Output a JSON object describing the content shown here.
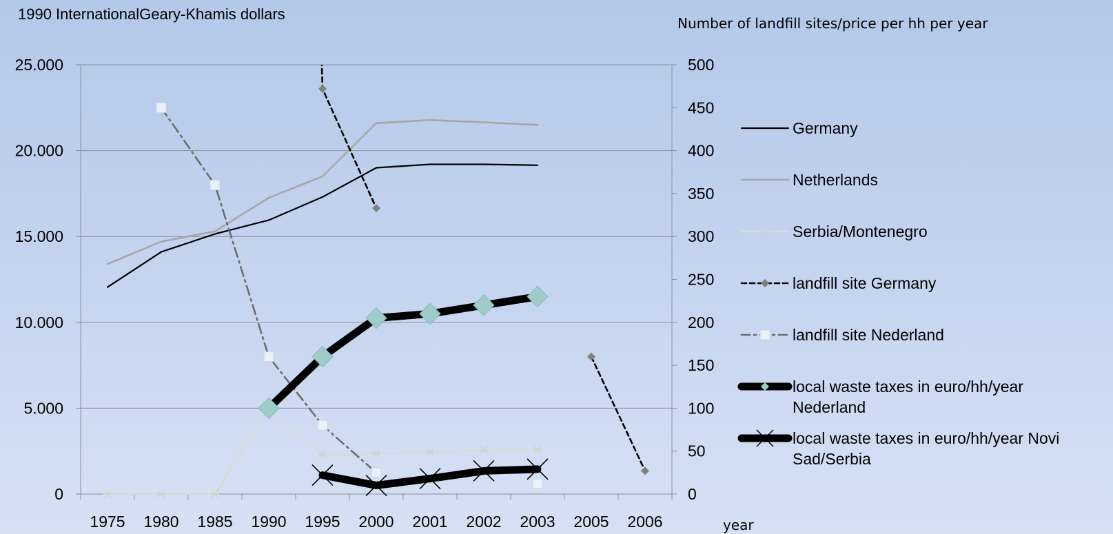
{
  "chart_data": {
    "type": "line",
    "title": "",
    "left_axis_title": "1990 InternationalGeary-Khamis dollars",
    "right_axis_title": "Number of landfill sites/price per hh per year",
    "xlabel": "year",
    "categories": [
      "1975",
      "1980",
      "1985",
      "1990",
      "1995",
      "2000",
      "2001",
      "2002",
      "2003",
      "2005",
      "2006"
    ],
    "left_ylim": [
      0,
      25000
    ],
    "left_ticks": [
      "0",
      "5.000",
      "10.000",
      "15.000",
      "20.000",
      "25.000"
    ],
    "right_ylim": [
      0,
      500
    ],
    "right_ticks": [
      "0",
      "50",
      "100",
      "150",
      "200",
      "250",
      "300",
      "350",
      "400",
      "450",
      "500"
    ],
    "grid": true,
    "legend_position": "right",
    "series": [
      {
        "name": "Germany",
        "axis": "left",
        "color": "#000000",
        "values": [
          12050,
          14100,
          15150,
          15950,
          17300,
          19000,
          19200,
          19200,
          19150,
          null,
          null
        ]
      },
      {
        "name": "Netherlands",
        "axis": "left",
        "color": "#a6a6a6",
        "values": [
          13400,
          14700,
          15300,
          17250,
          18500,
          21600,
          21780,
          21650,
          21500,
          null,
          null
        ]
      },
      {
        "name": "Serbia/Montenegro",
        "axis": "left",
        "color": "#d0dcd8",
        "values": [
          0,
          0,
          0,
          5000,
          2300,
          2350,
          2450,
          2550,
          2600,
          null,
          null
        ]
      },
      {
        "name": "landfill site Germany",
        "axis": "right",
        "color": "#000000",
        "values": [
          null,
          null,
          null,
          null,
          472,
          333,
          null,
          null,
          null,
          160,
          27
        ]
      },
      {
        "name": "landfill site Nederland",
        "axis": "right",
        "color": "#6d6d6d",
        "values": [
          null,
          450,
          360,
          160,
          80,
          25,
          null,
          null,
          12,
          null,
          null
        ]
      },
      {
        "name": "local waste taxes in euro/hh/year Nederland",
        "axis": "right",
        "color": "#000000",
        "values": [
          null,
          null,
          null,
          100,
          160,
          205,
          210,
          220,
          230,
          null,
          null
        ]
      },
      {
        "name": "local waste taxes in euro/hh/year Novi Sad/Serbia",
        "axis": "right",
        "color": "#000000",
        "values": [
          null,
          null,
          null,
          null,
          22,
          10,
          18,
          27,
          29,
          null,
          null
        ]
      }
    ]
  }
}
